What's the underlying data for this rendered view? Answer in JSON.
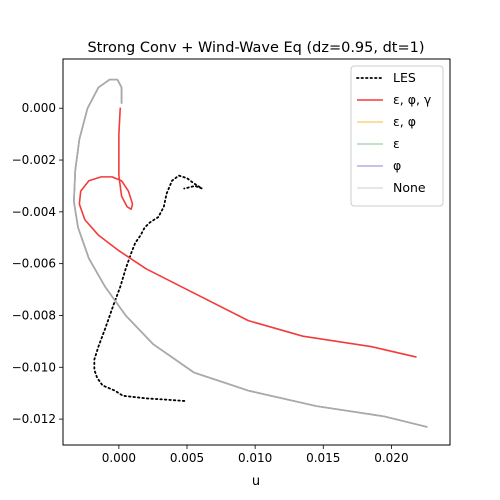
{
  "chart_data": {
    "type": "line",
    "title": "Strong Conv + Wind-Wave Eq (dz=0.95, dt=1)",
    "xlabel": "u",
    "ylabel": "",
    "xlim": [
      -0.0041,
      0.0243
    ],
    "ylim": [
      -0.013,
      0.0019
    ],
    "xticks": [
      0.0,
      0.005,
      0.01,
      0.015,
      0.02
    ],
    "xtick_labels": [
      "0.000",
      "0.005",
      "0.010",
      "0.015",
      "0.020"
    ],
    "yticks": [
      0.0,
      -0.002,
      -0.004,
      -0.006,
      -0.008,
      -0.01,
      -0.012
    ],
    "ytick_labels": [
      "0.000",
      "−0.002",
      "−0.004",
      "−0.006",
      "−0.008",
      "−0.010",
      "−0.012"
    ],
    "grid": false,
    "legend_position": "top-right",
    "series": [
      {
        "name": "LES",
        "color": "#000000",
        "style": "dotted",
        "opacity": 1,
        "points": [
          [
            0.0048,
            -0.0113
          ],
          [
            0.0035,
            -0.01125
          ],
          [
            0.002,
            -0.0112
          ],
          [
            0.0003,
            -0.0111
          ],
          [
            -0.0003,
            -0.0109
          ],
          [
            -0.0012,
            -0.0107
          ],
          [
            -0.0016,
            -0.0104
          ],
          [
            -0.0018,
            -0.0101
          ],
          [
            -0.0018,
            -0.0097
          ],
          [
            -0.0015,
            -0.0092
          ],
          [
            -0.001,
            -0.0085
          ],
          [
            -0.0004,
            -0.0076
          ],
          [
            0.0001,
            -0.0069
          ],
          [
            0.0005,
            -0.0062
          ],
          [
            0.0009,
            -0.0056
          ],
          [
            0.0012,
            -0.0052
          ],
          [
            0.0016,
            -0.0049
          ],
          [
            0.0019,
            -0.0046
          ],
          [
            0.0023,
            -0.0044
          ],
          [
            0.0029,
            -0.0042
          ],
          [
            0.0033,
            -0.0038
          ],
          [
            0.0035,
            -0.0033
          ],
          [
            0.0039,
            -0.0028
          ],
          [
            0.0044,
            -0.0026
          ],
          [
            0.005,
            -0.0027
          ],
          [
            0.0055,
            -0.0029
          ],
          [
            0.0061,
            -0.0031
          ],
          [
            0.0056,
            -0.003
          ],
          [
            0.0048,
            -0.0031
          ]
        ]
      },
      {
        "name": "ε, φ, γ",
        "color": "#f23c3c",
        "style": "solid",
        "opacity": 1,
        "points": [
          [
            0.0001,
            0.0
          ],
          [
            0.0,
            -0.001
          ],
          [
            0.0,
            -0.0026
          ],
          [
            0.0002,
            -0.0034
          ],
          [
            0.0006,
            -0.0038
          ],
          [
            0.0009,
            -0.0039
          ],
          [
            0.001,
            -0.0037
          ],
          [
            0.0007,
            -0.0032
          ],
          [
            0.0002,
            -0.0028
          ],
          [
            -0.0005,
            -0.00265
          ],
          [
            -0.0013,
            -0.00265
          ],
          [
            -0.0022,
            -0.0028
          ],
          [
            -0.0028,
            -0.0032
          ],
          [
            -0.0029,
            -0.0037
          ],
          [
            -0.0025,
            -0.0043
          ],
          [
            -0.0015,
            -0.0049
          ],
          [
            0.0,
            -0.0055
          ],
          [
            0.002,
            -0.0062
          ],
          [
            0.005,
            -0.007
          ],
          [
            0.0095,
            -0.0082
          ],
          [
            0.0135,
            -0.0088
          ],
          [
            0.0185,
            -0.0092
          ],
          [
            0.0218,
            -0.0096
          ]
        ]
      },
      {
        "name": "ε, φ",
        "color": "#ffbf40",
        "style": "solid",
        "opacity": 0.7,
        "points": [
          [
            0.0002,
            0.0002
          ],
          [
            0.0002,
            0.0008
          ],
          [
            -0.0001,
            0.0011
          ],
          [
            -0.0007,
            0.0011
          ],
          [
            -0.0015,
            0.0008
          ],
          [
            -0.0023,
            0.0
          ],
          [
            -0.0029,
            -0.0012
          ],
          [
            -0.0032,
            -0.0024
          ],
          [
            -0.0033,
            -0.0036
          ],
          [
            -0.003,
            -0.0046
          ],
          [
            -0.0022,
            -0.0058
          ],
          [
            -0.001,
            -0.0069
          ],
          [
            0.0005,
            -0.008
          ],
          [
            0.0025,
            -0.0091
          ],
          [
            0.0055,
            -0.0102
          ],
          [
            0.0095,
            -0.0109
          ],
          [
            0.0145,
            -0.0115
          ],
          [
            0.0195,
            -0.0119
          ],
          [
            0.0226,
            -0.0123
          ]
        ]
      },
      {
        "name": "ε",
        "color": "#93c293",
        "style": "solid",
        "opacity": 0.7,
        "points": [
          [
            0.0002,
            0.0002
          ],
          [
            0.0002,
            0.0008
          ],
          [
            -0.0001,
            0.0011
          ],
          [
            -0.0007,
            0.0011
          ],
          [
            -0.0015,
            0.0008
          ],
          [
            -0.0023,
            0.0
          ],
          [
            -0.0029,
            -0.0012
          ],
          [
            -0.0032,
            -0.0024
          ],
          [
            -0.0033,
            -0.0036
          ],
          [
            -0.003,
            -0.0046
          ],
          [
            -0.0022,
            -0.0058
          ],
          [
            -0.001,
            -0.0069
          ],
          [
            0.0005,
            -0.008
          ],
          [
            0.0025,
            -0.0091
          ],
          [
            0.0055,
            -0.0102
          ],
          [
            0.0095,
            -0.0109
          ],
          [
            0.0145,
            -0.0115
          ],
          [
            0.0195,
            -0.0119
          ],
          [
            0.0226,
            -0.0123
          ]
        ]
      },
      {
        "name": "φ",
        "color": "#8f8fd9",
        "style": "solid",
        "opacity": 0.7,
        "points": [
          [
            0.0002,
            0.0002
          ],
          [
            0.0002,
            0.0008
          ],
          [
            -0.0001,
            0.0011
          ],
          [
            -0.0007,
            0.0011
          ],
          [
            -0.0015,
            0.0008
          ],
          [
            -0.0023,
            0.0
          ],
          [
            -0.0029,
            -0.0012
          ],
          [
            -0.0032,
            -0.0024
          ],
          [
            -0.0033,
            -0.0036
          ],
          [
            -0.003,
            -0.0046
          ],
          [
            -0.0022,
            -0.0058
          ],
          [
            -0.001,
            -0.0069
          ],
          [
            0.0005,
            -0.008
          ],
          [
            0.0025,
            -0.0091
          ],
          [
            0.0055,
            -0.0102
          ],
          [
            0.0095,
            -0.0109
          ],
          [
            0.0145,
            -0.0115
          ],
          [
            0.0195,
            -0.0119
          ],
          [
            0.0226,
            -0.0123
          ]
        ]
      },
      {
        "name": "None",
        "color": "#aaaaaa",
        "style": "solid",
        "opacity": 1,
        "legend_color": "#dddddd",
        "points": [
          [
            0.0002,
            0.0002
          ],
          [
            0.0002,
            0.0008
          ],
          [
            -0.0001,
            0.0011
          ],
          [
            -0.0007,
            0.0011
          ],
          [
            -0.0015,
            0.0008
          ],
          [
            -0.0023,
            0.0
          ],
          [
            -0.0029,
            -0.0012
          ],
          [
            -0.0032,
            -0.0024
          ],
          [
            -0.0033,
            -0.0036
          ],
          [
            -0.003,
            -0.0046
          ],
          [
            -0.0022,
            -0.0058
          ],
          [
            -0.001,
            -0.0069
          ],
          [
            0.0005,
            -0.008
          ],
          [
            0.0025,
            -0.0091
          ],
          [
            0.0055,
            -0.0102
          ],
          [
            0.0095,
            -0.0109
          ],
          [
            0.0145,
            -0.0115
          ],
          [
            0.0195,
            -0.0119
          ],
          [
            0.0226,
            -0.0123
          ]
        ]
      }
    ]
  }
}
